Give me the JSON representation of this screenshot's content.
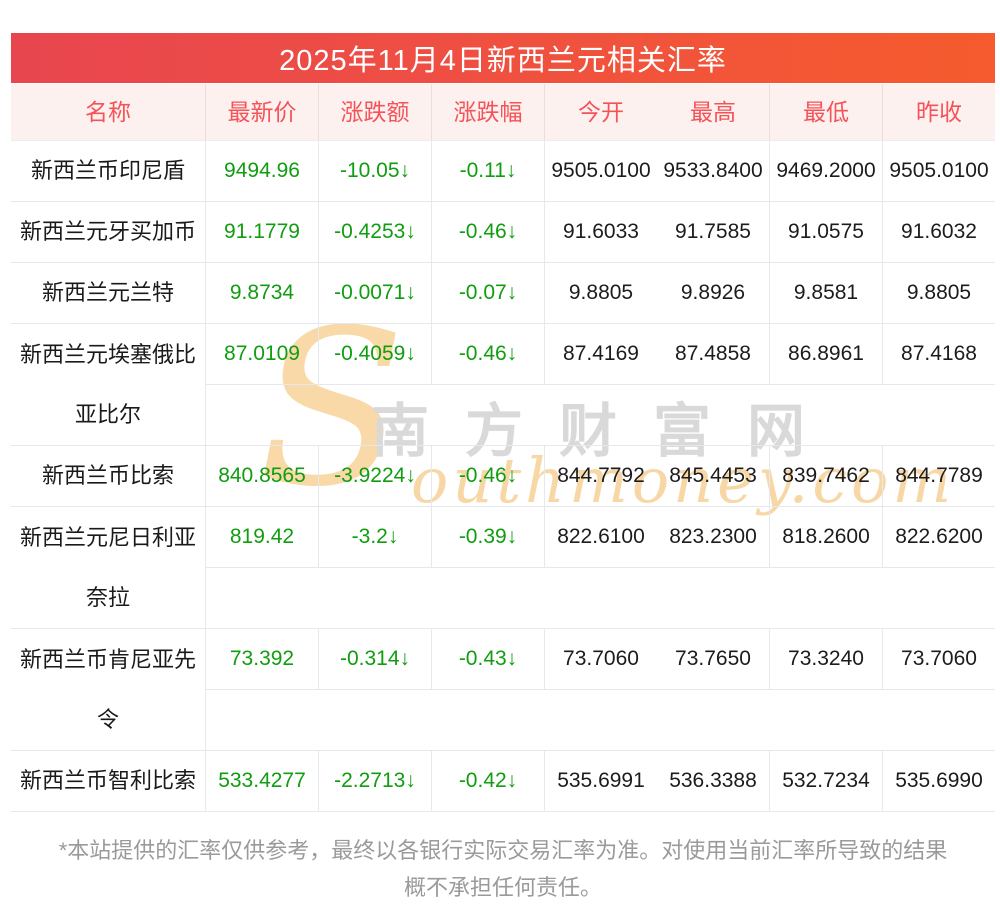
{
  "title": "2025年11月4日新西兰元相关汇率",
  "table": {
    "columns": [
      "名称",
      "最新价",
      "涨跌额",
      "涨跌幅",
      "今开",
      "最高",
      "最低",
      "昨收"
    ],
    "rows": [
      {
        "name": "新西兰币印尼盾",
        "latest": "9494.96",
        "change": "-10.05↓",
        "change_pct": "-0.11↓",
        "open": "9505.0100",
        "high": "9533.8400",
        "low": "9469.2000",
        "prev_close": "9505.0100"
      },
      {
        "name": "新西兰元牙买加币",
        "latest": "91.1779",
        "change": "-0.4253↓",
        "change_pct": "-0.46↓",
        "open": "91.6033",
        "high": "91.7585",
        "low": "91.0575",
        "prev_close": "91.6032"
      },
      {
        "name": "新西兰元兰特",
        "latest": "9.8734",
        "change": "-0.0071↓",
        "change_pct": "-0.07↓",
        "open": "9.8805",
        "high": "9.8926",
        "low": "9.8581",
        "prev_close": "9.8805"
      },
      {
        "name": "新西兰元埃塞俄比\n亚比尔",
        "latest": "87.0109",
        "change": "-0.4059↓",
        "change_pct": "-0.46↓",
        "open": "87.4169",
        "high": "87.4858",
        "low": "86.8961",
        "prev_close": "87.4168"
      },
      {
        "name": "新西兰币比索",
        "latest": "840.8565",
        "change": "-3.9224↓",
        "change_pct": "-0.46↓",
        "open": "844.7792",
        "high": "845.4453",
        "low": "839.7462",
        "prev_close": "844.7789"
      },
      {
        "name": "新西兰元尼日利亚\n奈拉",
        "latest": "819.42",
        "change": "-3.2↓",
        "change_pct": "-0.39↓",
        "open": "822.6100",
        "high": "823.2300",
        "low": "818.2600",
        "prev_close": "822.6200"
      },
      {
        "name": "新西兰币肯尼亚先\n令",
        "latest": "73.392",
        "change": "-0.314↓",
        "change_pct": "-0.43↓",
        "open": "73.7060",
        "high": "73.7650",
        "low": "73.3240",
        "prev_close": "73.7060"
      },
      {
        "name": "新西兰币智利比索",
        "latest": "533.4277",
        "change": "-2.2713↓",
        "change_pct": "-0.42↓",
        "open": "535.6991",
        "high": "536.3388",
        "low": "532.7234",
        "prev_close": "535.6990"
      }
    ]
  },
  "watermark": {
    "initial": "S",
    "script": "outhmoney.com",
    "brand": "南方财富网"
  },
  "footer": {
    "line1": "*本站提供的汇率仅供参考，最终以各银行实际交易汇率为准。对使用当前汇率所导致的结果",
    "line2": "概不承担任何责任。"
  },
  "colors": {
    "title_gradient_left": "#e8464f",
    "title_gradient_right": "#f55b2d",
    "header_bg": "#fdf1f0",
    "header_text": "#f45358",
    "down_green": "#109d10",
    "value_dark": "#1c1c1c",
    "border": "#e5e8ee",
    "footer_text": "#9a9a9a",
    "watermark_orange": "#f8d7a6",
    "watermark_gray": "#d9d9d9"
  }
}
